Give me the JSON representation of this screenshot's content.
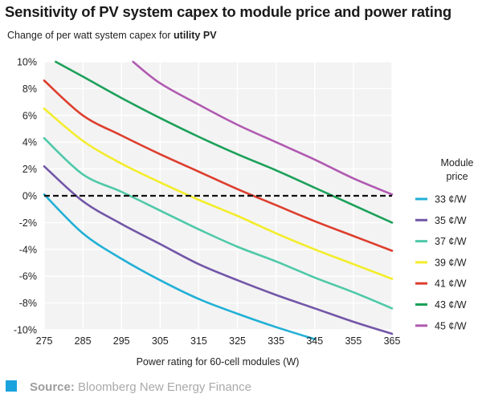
{
  "header": {
    "title": "Sensitivity of PV system capex to module price and power rating",
    "subtitle_prefix": "Change of per watt system capex for ",
    "subtitle_bold": "utility PV"
  },
  "footer": {
    "source_label": "Source:",
    "source_text": " Bloomberg New Energy Finance",
    "accent_color": "#1aa3dd"
  },
  "chart_data": {
    "type": "line",
    "title": "Sensitivity of PV system capex to module price and power rating",
    "subtitle": "Change of per watt system capex for utility PV",
    "xlabel": "Power rating for 60-cell modules (W)",
    "ylabel": "",
    "xlim": [
      275,
      365
    ],
    "ylim": [
      -10,
      10
    ],
    "x_ticks": [
      275,
      285,
      295,
      305,
      315,
      325,
      335,
      345,
      355,
      365
    ],
    "y_ticks": [
      10,
      8,
      6,
      4,
      2,
      0,
      -2,
      -4,
      -6,
      -8,
      -10
    ],
    "y_tick_labels": [
      "10%",
      "8%",
      "6%",
      "4%",
      "2%",
      "0%",
      "-2%",
      "-4%",
      "-6%",
      "-8%",
      "-10%"
    ],
    "grid": true,
    "reference_line": {
      "y": 0,
      "style": "dashed",
      "color": "#111111"
    },
    "legend_title_lines": [
      "Module",
      "price"
    ],
    "legend_position": "right",
    "series": [
      {
        "name": "33 ¢/W",
        "color": "#22b0d6",
        "x": [
          275,
          285,
          295,
          305,
          315,
          325,
          335,
          345
        ],
        "y": [
          0.1,
          -2.8,
          -4.7,
          -6.3,
          -7.7,
          -8.8,
          -9.8,
          -10.7
        ]
      },
      {
        "name": "35 ¢/W",
        "color": "#7257a8",
        "x": [
          275,
          285,
          295,
          305,
          315,
          325,
          335,
          345,
          355,
          365
        ],
        "y": [
          2.2,
          -0.4,
          -2.1,
          -3.6,
          -5.1,
          -6.3,
          -7.4,
          -8.4,
          -9.4,
          -10.3
        ]
      },
      {
        "name": "37 ¢/W",
        "color": "#4fc9a8",
        "x": [
          275,
          285,
          295,
          305,
          315,
          325,
          335,
          345,
          355,
          365
        ],
        "y": [
          4.3,
          1.6,
          0.3,
          -1.1,
          -2.5,
          -3.8,
          -4.9,
          -6.1,
          -7.2,
          -8.4
        ]
      },
      {
        "name": "39 ¢/W",
        "color": "#f3ed2a",
        "x": [
          275,
          285,
          295,
          305,
          315,
          325,
          335,
          345,
          355,
          365
        ],
        "y": [
          6.5,
          4.1,
          2.4,
          1.0,
          -0.3,
          -1.5,
          -2.8,
          -4.0,
          -5.1,
          -6.2
        ]
      },
      {
        "name": "41 ¢/W",
        "color": "#dd3e2e",
        "x": [
          275,
          285,
          295,
          305,
          315,
          325,
          335,
          345,
          355,
          365
        ],
        "y": [
          8.6,
          6.0,
          4.5,
          3.1,
          1.8,
          0.5,
          -0.7,
          -1.9,
          -3.0,
          -4.1
        ]
      },
      {
        "name": "43 ¢/W",
        "color": "#1ca05a",
        "x": [
          278,
          285,
          295,
          305,
          315,
          325,
          335,
          345,
          355,
          365
        ],
        "y": [
          10.0,
          8.9,
          7.3,
          5.8,
          4.4,
          3.1,
          1.9,
          0.6,
          -0.7,
          -2.0
        ]
      },
      {
        "name": "45 ¢/W",
        "color": "#b05ab0",
        "x": [
          298,
          305,
          315,
          325,
          335,
          345,
          355,
          365
        ],
        "y": [
          10.0,
          8.4,
          6.8,
          5.3,
          4.0,
          2.7,
          1.3,
          0.1
        ]
      }
    ]
  }
}
